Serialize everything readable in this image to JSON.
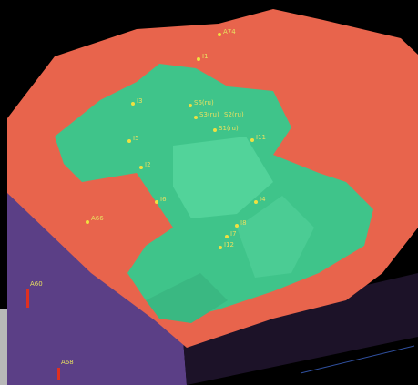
{
  "labels": [
    "A74",
    "I1",
    "I3",
    "S6(ru)",
    "S3(ru)",
    "S2(ru)",
    "S1(ru)",
    "I5",
    "I11",
    "I2",
    "I6",
    "A66",
    "I4",
    "I8",
    "I7",
    "I12",
    "A60",
    "A68"
  ]
}
